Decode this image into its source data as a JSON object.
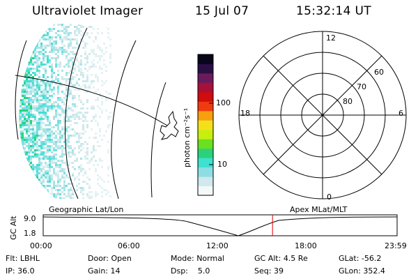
{
  "header": {
    "instrument": "Ultraviolet Imager",
    "date": "15 Jul 07",
    "time": "15:32:14 UT"
  },
  "colorbar": {
    "unit_label": "photon cm⁻²s⁻¹",
    "ticks": [
      "100",
      "10"
    ],
    "colors": [
      "#f4f8f8",
      "#cfe9ec",
      "#8edde4",
      "#3ee0d0",
      "#2cd27a",
      "#6ae020",
      "#c8ee10",
      "#f4e01a",
      "#f6a010",
      "#ee3c10",
      "#d00c0c",
      "#a8103a",
      "#6a1b5c",
      "#2a0f45",
      "#08061a"
    ]
  },
  "polar_grid": {
    "mlt_labels": {
      "top": "12",
      "left": "18",
      "right": "6",
      "bottom": "0"
    },
    "lat_labels": [
      "60",
      "70",
      "80"
    ]
  },
  "altitude_panel": {
    "ylabel": "GC Alt",
    "yticks": [
      "9.0",
      "1.8"
    ],
    "left_label": "Geographic Lat/Lon",
    "right_label": "Apex MLat/MLT",
    "xticks": [
      "00:00",
      "06:00",
      "12:00",
      "18:00",
      "23:59"
    ],
    "current_time_fraction": 0.648
  },
  "status": {
    "flt_label": "Flt:",
    "flt": "LBHL",
    "door_label": "Door:",
    "door": "Open",
    "mode_label": "Mode:",
    "mode": "Normal",
    "gcalt_label": "GC Alt:",
    "gcalt": "4.5 Re",
    "glat_label": "GLat:",
    "glat": "-56.2",
    "ip_label": "IP:",
    "ip": "36.0",
    "gain_label": "Gain:",
    "gain": "14",
    "dsp_label": "Dsp:",
    "dsp": "5.0",
    "seq_label": "Seq:",
    "seq": "39",
    "glon_label": "GLon:",
    "glon": "352.4"
  }
}
